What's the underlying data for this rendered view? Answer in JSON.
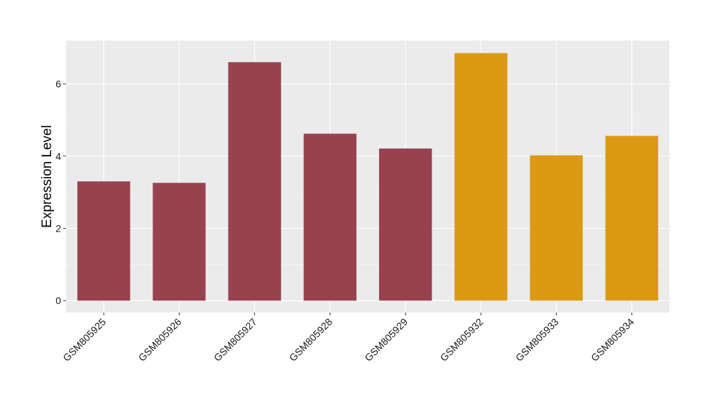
{
  "chart_data": {
    "type": "bar",
    "categories": [
      "GSM805925",
      "GSM805926",
      "GSM805927",
      "GSM805928",
      "GSM805929",
      "GSM805932",
      "GSM805933",
      "GSM805934"
    ],
    "values": [
      3.3,
      3.26,
      6.6,
      4.62,
      4.21,
      6.85,
      4.02,
      4.56
    ],
    "bar_colors": [
      "#984250",
      "#984250",
      "#984250",
      "#984250",
      "#984250",
      "#dc9913",
      "#dc9913",
      "#dc9913"
    ],
    "title": "",
    "xlabel": "",
    "ylabel": "Expression Level",
    "ylim": [
      -0.33,
      7.2
    ],
    "yticks": [
      0,
      2,
      4,
      6
    ],
    "grid": true,
    "legend": "none",
    "panel_background": "#ebebeb"
  }
}
